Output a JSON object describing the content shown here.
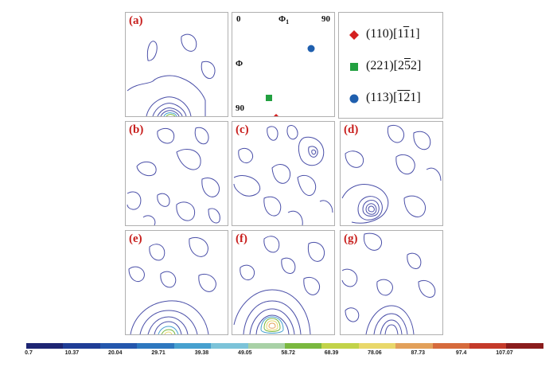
{
  "panels": {
    "a": {
      "label": "(a)"
    },
    "b": {
      "label": "(b)"
    },
    "c": {
      "label": "(c)"
    },
    "d": {
      "label": "(d)"
    },
    "e": {
      "label": "(e)"
    },
    "f": {
      "label": "(f)"
    },
    "g": {
      "label": "(g)"
    }
  },
  "reference": {
    "phi1_min": "0",
    "phi1_label": "Φ1",
    "phi1_max": "90",
    "phi_label": "Φ",
    "phi_max": "90"
  },
  "legend": {
    "items": [
      {
        "prefix": "(110)[1",
        "bar": "1",
        "suffix": "1]",
        "marker": "diamond",
        "color": "#d42020"
      },
      {
        "prefix": "(221)[2",
        "bar": "5",
        "suffix": "2]",
        "marker": "square",
        "color": "#22a040"
      },
      {
        "prefix": "(113)[",
        "bar": "1",
        "mid": "",
        "bar2": "2",
        "suffix": "1]",
        "marker": "circle",
        "color": "#1f5fae"
      }
    ]
  },
  "colorbar": {
    "colors": [
      "#1d2573",
      "#1f3d96",
      "#2457ad",
      "#2d77bf",
      "#46a0cf",
      "#7cc3d9",
      "#a8d1a6",
      "#7ab83f",
      "#c2d349",
      "#e9d86a",
      "#e2a05a",
      "#d66a3c",
      "#c43a2a",
      "#8a1c1c"
    ],
    "ticks": [
      "0.7",
      "10.37",
      "20.04",
      "29.71",
      "39.38",
      "49.05",
      "58.72",
      "68.39",
      "78.06",
      "87.73",
      "97.4",
      "107.07"
    ]
  }
}
